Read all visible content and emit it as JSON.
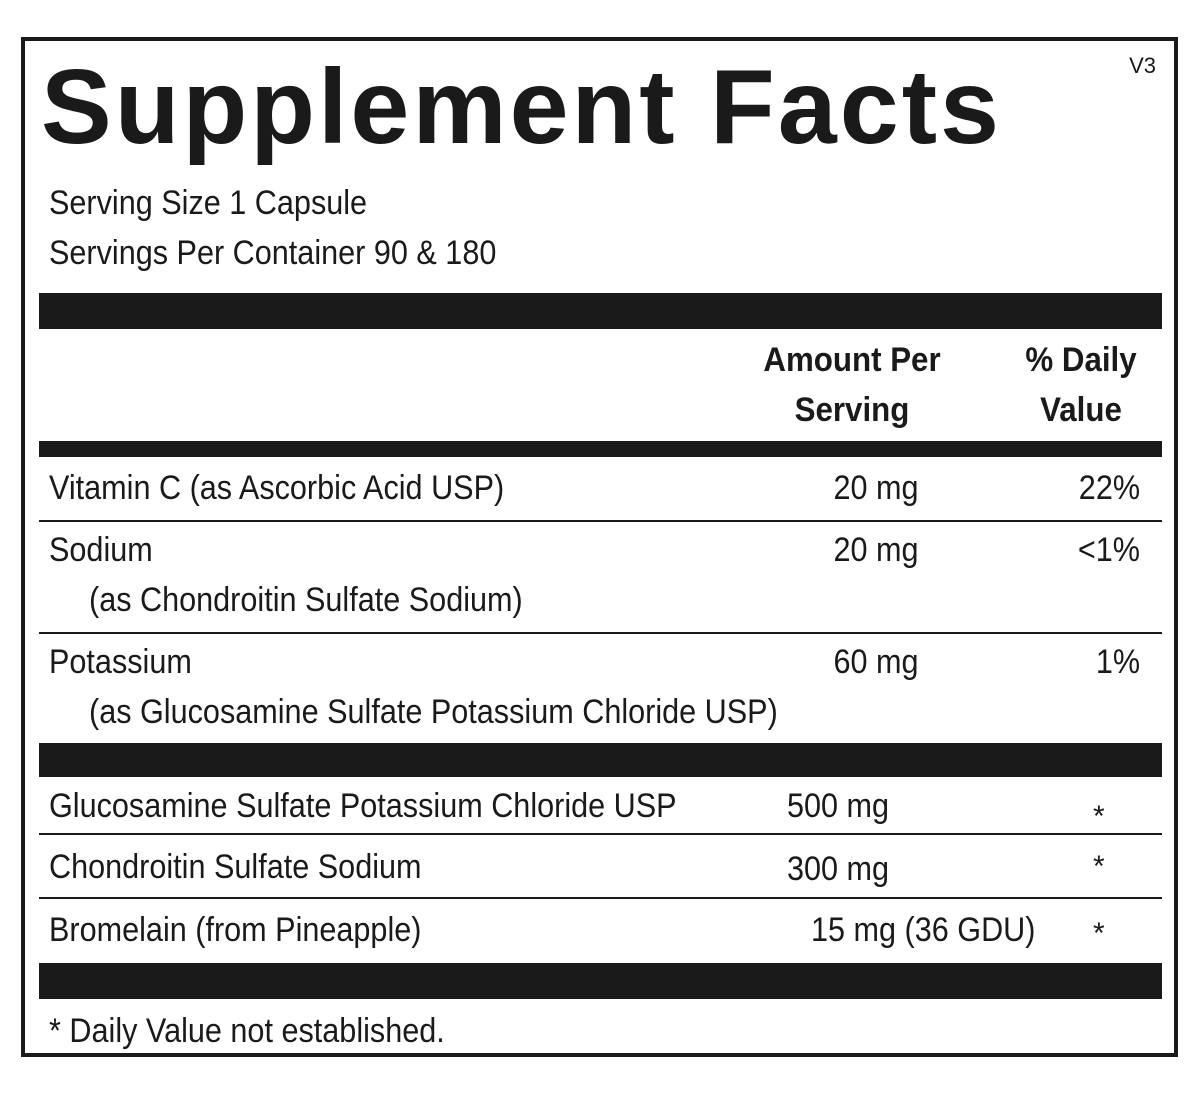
{
  "label": {
    "title": "Supplement Facts",
    "version": "V3",
    "serving_size": "Serving Size 1 Capsule",
    "servings_per_container": "Servings Per Container 90  & 180"
  },
  "columns": {
    "amount_line1": "Amount Per",
    "amount_line2": "Serving",
    "dv_line1": "% Daily",
    "dv_line2": "Value"
  },
  "nutrients": [
    {
      "name": "Vitamin C (as Ascorbic Acid USP)",
      "source": "",
      "amount": "20 mg",
      "dv": "22%"
    },
    {
      "name": "Sodium",
      "source": "(as Chondroitin Sulfate Sodium)",
      "amount": "20 mg",
      "dv": "<1%"
    },
    {
      "name": "Potassium",
      "source": "(as Glucosamine Sulfate Potassium Chloride USP)",
      "amount": "60 mg",
      "dv": "1%"
    }
  ],
  "ingredients": [
    {
      "name": "Glucosamine Sulfate Potassium Chloride USP",
      "amount": "500 mg",
      "dv": "*"
    },
    {
      "name": "Chondroitin Sulfate Sodium",
      "amount": "300 mg",
      "dv": "*"
    },
    {
      "name": "Bromelain (from Pineapple)",
      "amount": "15 mg (36 GDU)",
      "dv": "*"
    }
  ],
  "footnote": "* Daily Value not established."
}
